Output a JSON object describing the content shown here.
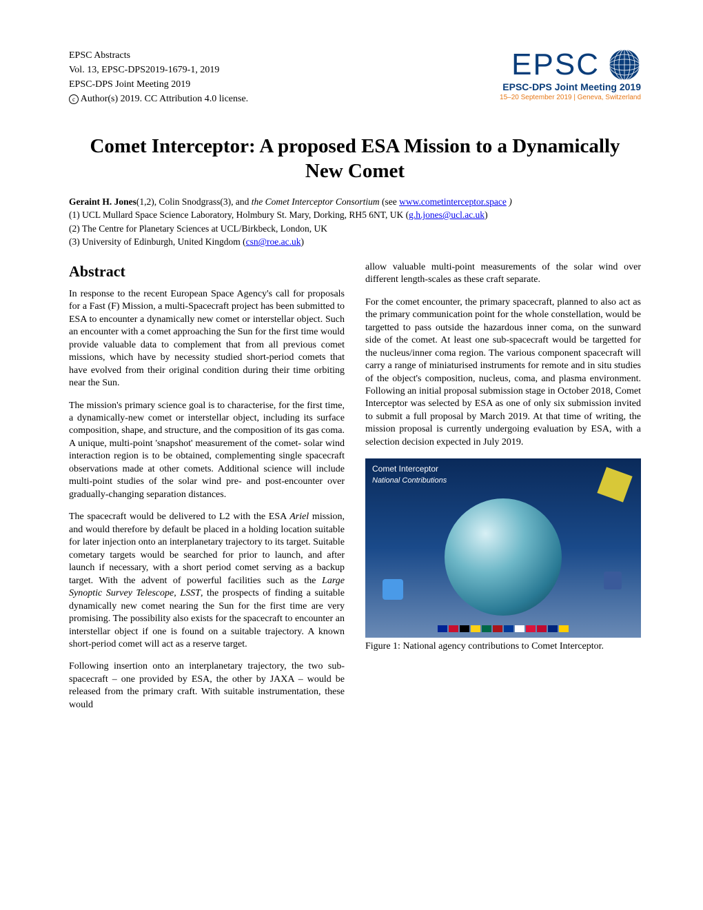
{
  "header": {
    "line1": "EPSC Abstracts",
    "line2": "Vol. 13, EPSC-DPS2019-1679-1, 2019",
    "line3": "EPSC-DPS Joint Meeting 2019",
    "line4": "Author(s) 2019. CC Attribution 4.0 license.",
    "logo_text": "EPSC",
    "meeting": "EPSC-DPS Joint Meeting 2019",
    "dates": "15–20 September 2019 | Geneva, Switzerland",
    "logo_color": "#0a3d7a",
    "accent_color": "#e67817"
  },
  "title": "Comet Interceptor: A proposed ESA Mission to a Dynamically New Comet",
  "authors": {
    "line": "Geraint H. Jones",
    "after_bold": "(1,2), Colin Snodgrass(3), and ",
    "consortium": "the Comet Interceptor Consortium",
    "see_prefix": " (see ",
    "link1": "www.cometinterceptor.space",
    "see_suffix": " )",
    "affil1_pre": "(1) UCL Mullard Space Science Laboratory, Holmbury St. Mary, Dorking, RH5 6NT, UK (",
    "email1": "g.h.jones@ucl.ac.uk",
    "affil1_post": ")",
    "affil2": "(2) The Centre for Planetary Sciences at UCL/Birkbeck, London, UK",
    "affil3_pre": "(3) University of Edinburgh, United Kingdom (",
    "email3": "csn@roe.ac.uk",
    "affil3_post": ")"
  },
  "abstract_heading": "Abstract",
  "left_paragraphs": [
    "In response to the recent European Space Agency's call for proposals for a Fast (F) Mission, a multi-Spacecraft project has been submitted to ESA to encounter a dynamically new comet or interstellar object. Such an encounter with a comet approaching the Sun for the first time would provide valuable data to complement that from all previous comet missions, which have by necessity studied short-period comets that have evolved from their original condition during their time orbiting near the Sun.",
    "The mission's primary science goal is to characterise, for the first time, a dynamically-new comet or interstellar object, including its surface composition, shape, and structure, and the composition of its gas coma. A unique, multi-point 'snapshot' measurement of the comet- solar wind interaction region is to be obtained, complementing single spacecraft observations made at other comets. Additional science will include multi-point studies of the solar wind pre- and post-encounter over gradually-changing separation distances."
  ],
  "left_p3_pre": "The spacecraft would be delivered to L2 with the ESA ",
  "left_p3_ariel": "Ariel",
  "left_p3_mid": " mission, and would therefore by default be placed in a holding location suitable for later injection onto an interplanetary trajectory to its target. Suitable cometary targets would be searched for prior to launch, and after launch if necessary, with a short period comet serving as a backup target. With the advent of powerful facilities such as the ",
  "left_p3_lsst": "Large Synoptic Survey Telescope, LSST",
  "left_p3_post": ", the prospects of finding a suitable dynamically new comet nearing the Sun for the first time are very promising. The possibility also exists for the spacecraft to encounter an interstellar object if one is found on a suitable trajectory. A known short-period comet will act as a reserve target.",
  "left_p4": "Following insertion onto an interplanetary trajectory, the two sub-spacecraft – one provided by ESA, the other by JAXA – would be released from the primary craft. With suitable instrumentation, these would",
  "right_p1": "allow valuable multi-point measurements of the solar wind over different length-scales as these craft separate.",
  "right_p2": "For the comet encounter, the primary spacecraft, planned to also act as the primary communication point for the whole constellation, would be targetted to pass outside the hazardous inner coma, on the sunward side of the comet. At least one sub-spacecraft would be targetted for the nucleus/inner coma region. The various component spacecraft will carry a range of miniaturised instruments for remote and in situ studies of the object's composition, nucleus, coma, and plasma environment. Following an initial proposal submission stage in October 2018, Comet Interceptor was selected by ESA as one of only six submission invited to submit a full proposal by March 2019. At that time of writing, the mission proposal is currently undergoing evaluation by ESA, with a selection decision expected in July 2019.",
  "figure": {
    "overlay_title": "Comet Interceptor",
    "overlay_subtitle": "National Contributions",
    "caption": "Figure 1: National agency contributions to Comet Interceptor.",
    "flag_colors": [
      "#002395",
      "#c8102e",
      "#000000",
      "#fcd116",
      "#006847",
      "#aa151b",
      "#003897",
      "#ffffff",
      "#dc143c",
      "#bf0a30",
      "#00247d",
      "#ffce00"
    ],
    "bg_gradient_top": "#0a2a5a",
    "bg_gradient_bottom": "#6a8ab5"
  }
}
